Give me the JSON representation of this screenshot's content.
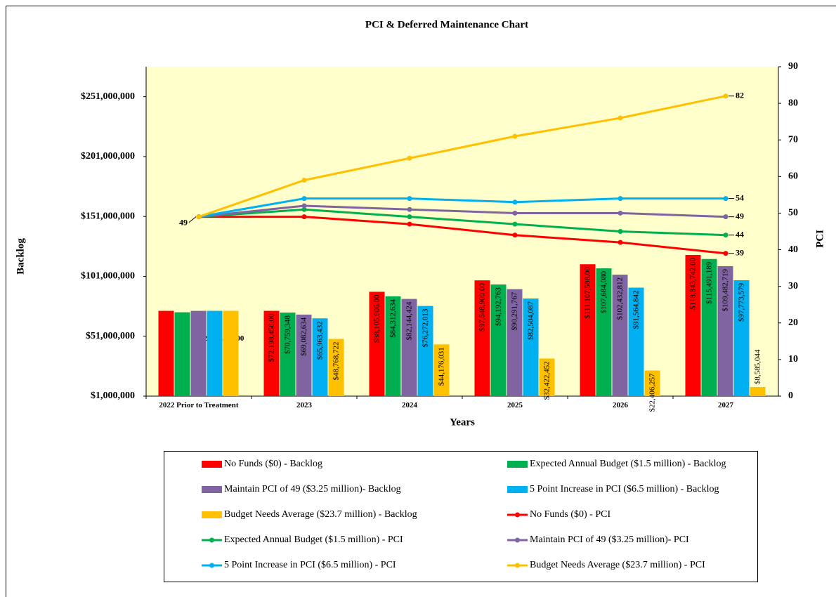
{
  "chart_data": {
    "type": "combo",
    "title": "PCI & Deferred Maintenance Chart",
    "x_label": "Years",
    "y_label": "Backlog",
    "y2_label": "PCI",
    "categories": [
      "2022 Prior to Treatment",
      "2023",
      "2024",
      "2025",
      "2026",
      "2027"
    ],
    "ylim": [
      1000000,
      276000000
    ],
    "yticks": [
      {
        "value": 1000000,
        "label": "$1,000,000"
      },
      {
        "value": 51000000,
        "label": "$51,000,000"
      },
      {
        "value": 101000000,
        "label": "$101,000,000"
      },
      {
        "value": 151000000,
        "label": "$151,000,000"
      },
      {
        "value": 201000000,
        "label": "$201,000,000"
      },
      {
        "value": 251000000,
        "label": "$251,000,000"
      }
    ],
    "y2lim": [
      0,
      90
    ],
    "y2ticks": [
      0,
      10,
      20,
      30,
      40,
      50,
      60,
      70,
      80,
      90
    ],
    "grid": false,
    "legend": "bottom",
    "series": [
      {
        "name": "No Funds ($0) - Backlog",
        "type": "bar",
        "color": "#ff0000",
        "values": [
          72198458,
          72198458,
          88105906,
          97648900,
          111107588,
          118843742
        ],
        "value_labels": [
          "$72,198,458.00",
          "$72,198,458.00",
          "$88,105,906.00",
          "$97,648,900.00",
          "$111,107,588.00",
          "$118,843,742.00"
        ]
      },
      {
        "name": "Expected Annual Budget ($1.5 million) - Backlog",
        "type": "bar",
        "color": "#00b050",
        "values": [
          71000000,
          70759348,
          84312634,
          94192763,
          107684080,
          115491189
        ],
        "value_labels": [
          null,
          "$70,759,348",
          "$84,312,634",
          "$94,192,763",
          "$107,684,080",
          "$115,491,189"
        ]
      },
      {
        "name": "Maintain PCI of 49 ($3.25 million)- Backlog",
        "type": "bar",
        "color": "#8064a2",
        "values": [
          72198458,
          69082634,
          82144424,
          90291767,
          102432812,
          109482719
        ],
        "value_labels": [
          null,
          "$69,082,634",
          "$82,144,424",
          "$90,291,767",
          "$102,432,812",
          "$109,482,719"
        ]
      },
      {
        "name": "5 Point Increase in PCI ($6.5 million) - Backlog",
        "type": "bar",
        "color": "#00b0f0",
        "values": [
          72198458,
          65963432,
          76272013,
          82504087,
          91564842,
          97773579
        ],
        "value_labels": [
          null,
          "$65,963,432",
          "$76,272,013",
          "$82,504,087",
          "$91,564,842",
          "$97,773,579"
        ]
      },
      {
        "name": "Budget Needs Average ($23.7 million) - Backlog",
        "type": "bar",
        "color": "#ffc000",
        "values": [
          72198458,
          48768722,
          44176031,
          32422452,
          22406257,
          8585044
        ],
        "value_labels": [
          null,
          "$48,768,722",
          "$44,176,031",
          "$32,422,452",
          "$22,406,257",
          "$8,585,044"
        ]
      },
      {
        "name": "No Funds ($0) - PCI",
        "type": "line",
        "axis": "y2",
        "color": "#ff0000",
        "values": [
          49,
          49,
          47,
          44,
          42,
          39
        ]
      },
      {
        "name": "Expected Annual Budget ($1.5 million) - PCI",
        "type": "line",
        "axis": "y2",
        "color": "#00b050",
        "values": [
          49,
          51,
          49,
          47,
          45,
          44
        ]
      },
      {
        "name": "Maintain PCI of 49 ($3.25 million)- PCI",
        "type": "line",
        "axis": "y2",
        "color": "#8064a2",
        "values": [
          49,
          52,
          51,
          50,
          50,
          49
        ]
      },
      {
        "name": "5 Point Increase in PCI ($6.5 million) - PCI",
        "type": "line",
        "axis": "y2",
        "color": "#00b0f0",
        "values": [
          49,
          54,
          54,
          53,
          54,
          54
        ]
      },
      {
        "name": "Budget Needs Average ($23.7 million) - PCI",
        "type": "line",
        "axis": "y2",
        "color": "#ffc000",
        "values": [
          49,
          59,
          65,
          71,
          76,
          82
        ]
      }
    ]
  }
}
